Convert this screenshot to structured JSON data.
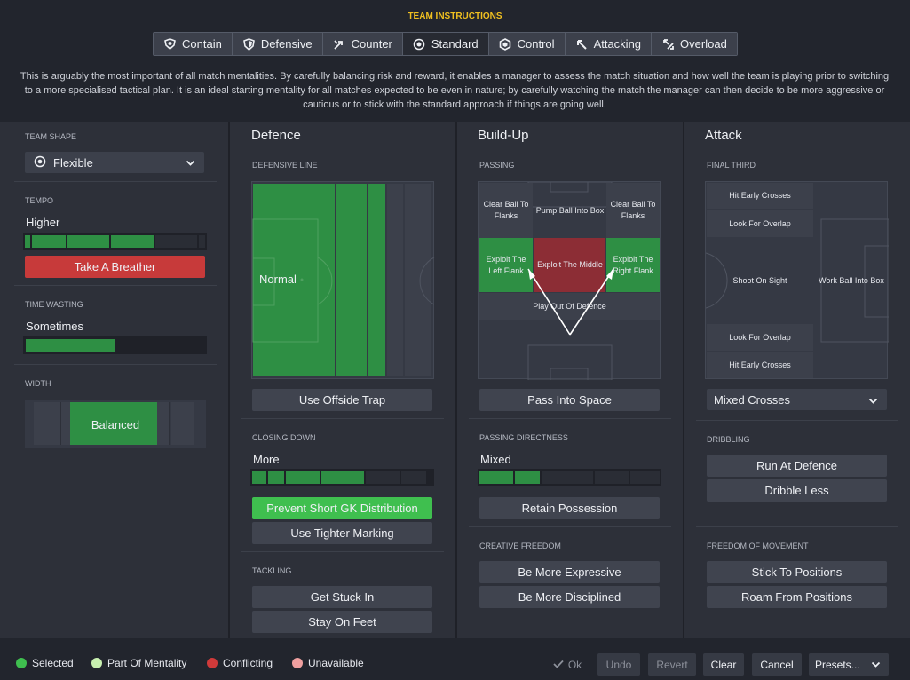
{
  "header": {
    "title": "TEAM INSTRUCTIONS"
  },
  "tabs": [
    {
      "label": "Contain",
      "icon": "shield-heart-icon"
    },
    {
      "label": "Defensive",
      "icon": "shield-icon"
    },
    {
      "label": "Counter",
      "icon": "arrows-icon"
    },
    {
      "label": "Standard",
      "icon": "target-icon",
      "active": true
    },
    {
      "label": "Control",
      "icon": "ball-icon"
    },
    {
      "label": "Attacking",
      "icon": "arrow-up-left-icon"
    },
    {
      "label": "Overload",
      "icon": "double-arrow-icon"
    }
  ],
  "description": "This is arguably the most important of all match mentalities. By carefully balancing risk and reward, it enables a manager to assess the match situation and how well the team is playing prior to switching to a more specialised tactical plan. It is an ideal starting mentality for all matches expected to be even in nature; by carefully watching the match the manager can then decide to be more aggressive or cautious or to stick with the standard approach if things are going well.",
  "left": {
    "team_shape_label": "TEAM SHAPE",
    "team_shape_value": "Flexible",
    "tempo_label": "TEMPO",
    "tempo_value": "Higher",
    "tempo_level": 0.74,
    "tempo_button": "Take A Breather",
    "time_wasting_label": "TIME WASTING",
    "time_wasting_value": "Sometimes",
    "time_wasting_level": 0.5,
    "width_label": "WIDTH",
    "width_value": "Balanced"
  },
  "defence": {
    "heading": "Defence",
    "line_label": "DEFENSIVE LINE",
    "line_value": "Normal",
    "offside_button": "Use Offside Trap",
    "closing_label": "CLOSING DOWN",
    "closing_value": "More",
    "prevent_button": "Prevent Short GK Distribution",
    "marking_button": "Use Tighter Marking",
    "tackling_label": "TACKLING",
    "stuck_in_button": "Get Stuck In",
    "stay_feet_button": "Stay On Feet"
  },
  "buildup": {
    "heading": "Build-Up",
    "passing_label": "PASSING",
    "cells": {
      "clear_left": "Clear Ball To Flanks",
      "pump": "Pump Ball Into Box",
      "clear_right": "Clear Ball To Flanks",
      "exploit_left": "Exploit The Left Flank",
      "exploit_middle": "Exploit The Middle",
      "exploit_right": "Exploit The Right Flank",
      "play_out": "Play Out Of Defence"
    },
    "space_button": "Pass Into Space",
    "directness_label": "PASSING DIRECTNESS",
    "directness_value": "Mixed",
    "retain_button": "Retain Possession",
    "creative_label": "CREATIVE FREEDOM",
    "expressive_button": "Be More Expressive",
    "disciplined_button": "Be More Disciplined"
  },
  "attack": {
    "heading": "Attack",
    "final_third_label": "FINAL THIRD",
    "cells": {
      "early_top": "Hit Early Crosses",
      "overlap_top": "Look For Overlap",
      "shoot": "Shoot On Sight",
      "work_ball": "Work Ball Into Box",
      "overlap_bottom": "Look For Overlap",
      "early_bottom": "Hit Early Crosses"
    },
    "crosses_value": "Mixed Crosses",
    "dribbling_label": "DRIBBLING",
    "run_button": "Run At Defence",
    "dribble_less_button": "Dribble Less",
    "movement_label": "FREEDOM OF MOVEMENT",
    "stick_button": "Stick To Positions",
    "roam_button": "Roam From Positions"
  },
  "legend": [
    {
      "label": "Selected",
      "color": "#3fbf4f"
    },
    {
      "label": "Part Of Mentality",
      "color": "#c8f0b0"
    },
    {
      "label": "Conflicting",
      "color": "#d03a3a"
    },
    {
      "label": "Unavailable",
      "color": "#f0a0a0"
    }
  ],
  "footer": {
    "ok": "Ok",
    "undo": "Undo",
    "revert": "Revert",
    "clear": "Clear",
    "cancel": "Cancel",
    "presets": "Presets..."
  }
}
